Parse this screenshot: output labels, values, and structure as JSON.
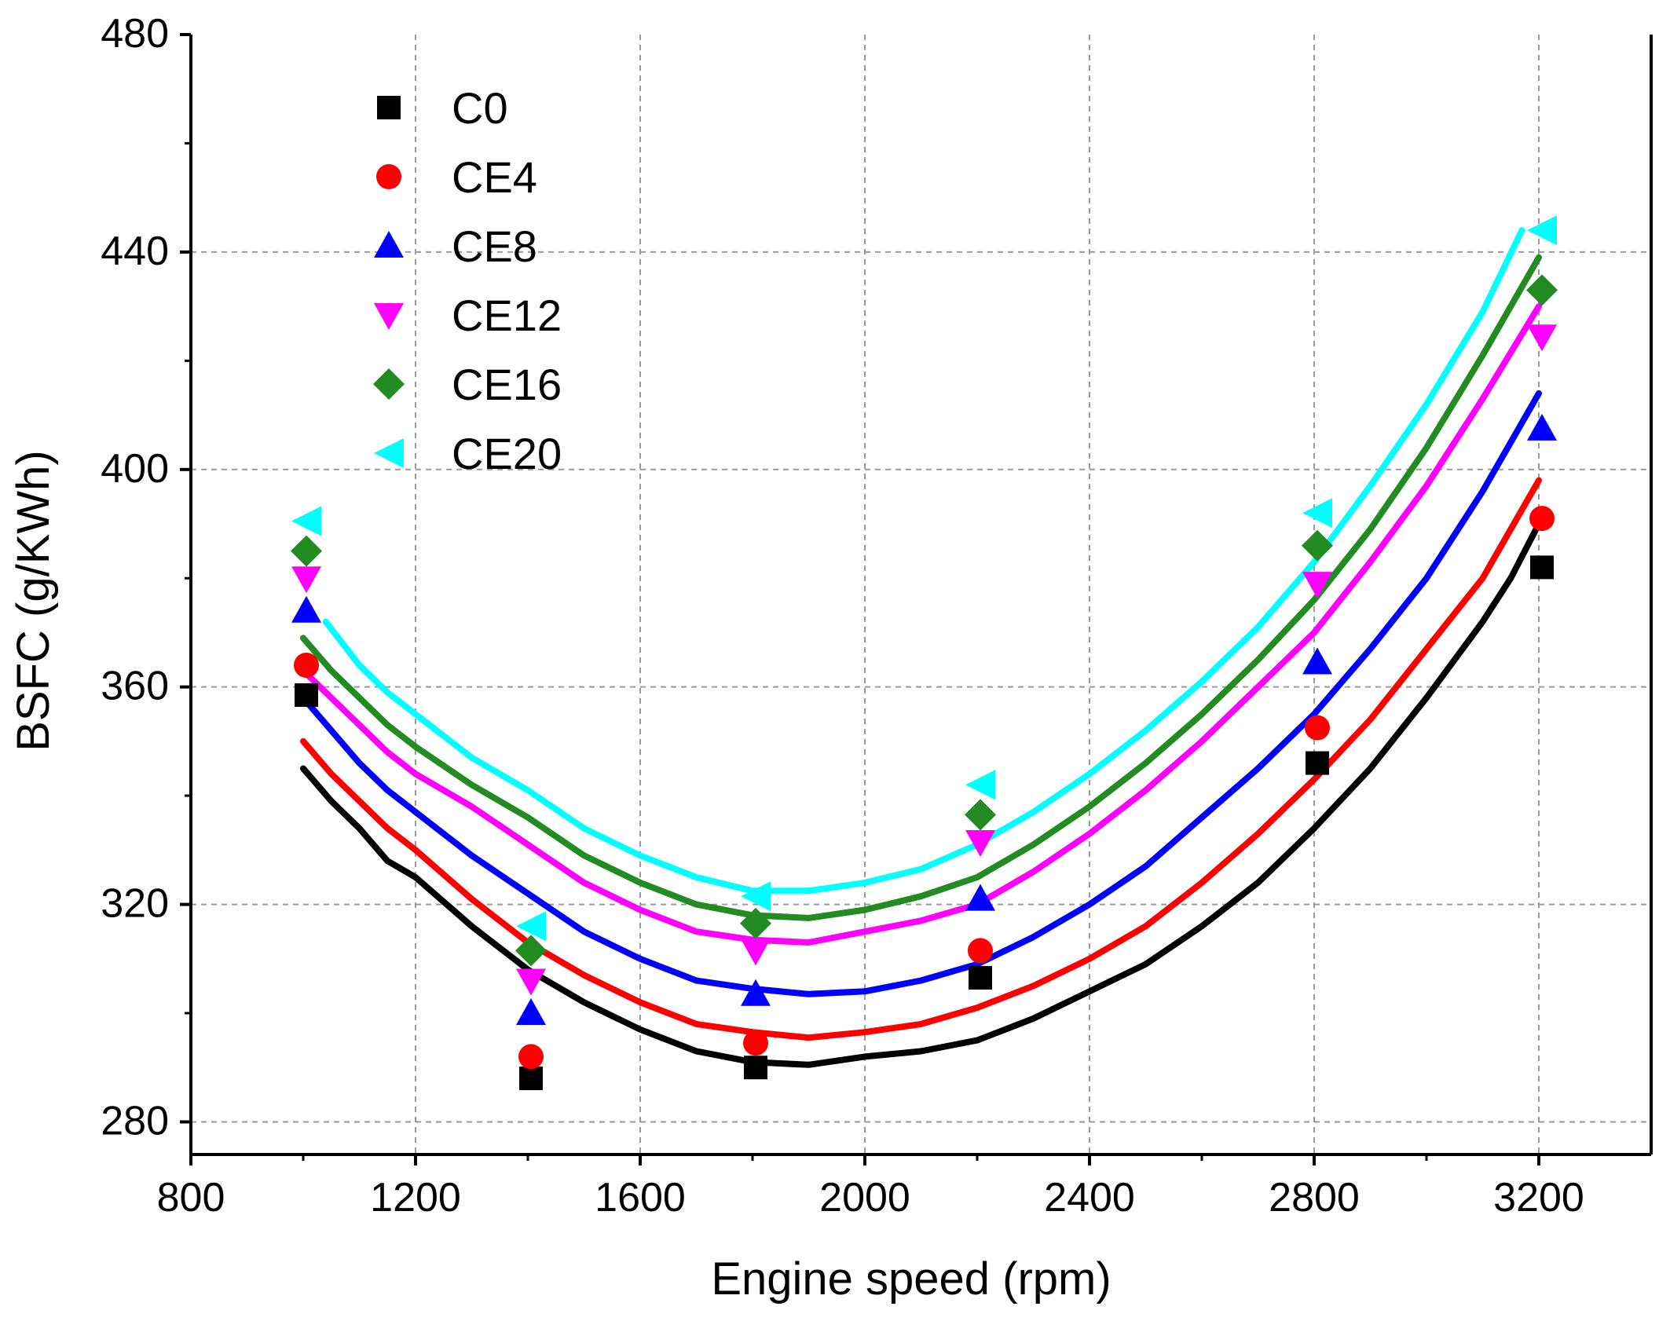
{
  "chart_data": {
    "type": "scatter",
    "xlabel": "Engine speed (rpm)",
    "ylabel": "BSFC (g/KWh)",
    "xlim": [
      800,
      3400
    ],
    "ylim": [
      274,
      480
    ],
    "xticks": [
      800,
      1200,
      1600,
      2000,
      2400,
      2800,
      3200
    ],
    "yticks": [
      280,
      320,
      360,
      400,
      440,
      480
    ],
    "grid": true,
    "legend_position": "top-left",
    "series": [
      {
        "name": "C0",
        "color": "#000000",
        "marker": "square",
        "points": [
          [
            1000,
            358.5
          ],
          [
            1400,
            288
          ],
          [
            1800,
            290
          ],
          [
            2200,
            306.5
          ],
          [
            2800,
            346
          ],
          [
            3200,
            382
          ]
        ],
        "curve": [
          [
            1000,
            345
          ],
          [
            1050,
            339
          ],
          [
            1100,
            334
          ],
          [
            1150,
            328
          ],
          [
            1200,
            325
          ],
          [
            1300,
            316
          ],
          [
            1400,
            308
          ],
          [
            1500,
            302
          ],
          [
            1600,
            297
          ],
          [
            1700,
            293
          ],
          [
            1800,
            291
          ],
          [
            1900,
            290.5
          ],
          [
            2000,
            292
          ],
          [
            2100,
            293
          ],
          [
            2200,
            295
          ],
          [
            2300,
            299
          ],
          [
            2400,
            304
          ],
          [
            2500,
            309
          ],
          [
            2600,
            316
          ],
          [
            2700,
            324
          ],
          [
            2800,
            334
          ],
          [
            2900,
            345
          ],
          [
            3000,
            358
          ],
          [
            3100,
            372
          ],
          [
            3150,
            380
          ],
          [
            3200,
            390
          ]
        ]
      },
      {
        "name": "CE4",
        "color": "#ff0000",
        "marker": "circle",
        "points": [
          [
            1000,
            364
          ],
          [
            1400,
            292
          ],
          [
            1800,
            294.5
          ],
          [
            2200,
            311.5
          ],
          [
            2800,
            352.5
          ],
          [
            3200,
            391
          ]
        ],
        "curve": [
          [
            1000,
            350
          ],
          [
            1050,
            344
          ],
          [
            1100,
            339
          ],
          [
            1150,
            334
          ],
          [
            1200,
            330
          ],
          [
            1300,
            321
          ],
          [
            1400,
            313
          ],
          [
            1500,
            307
          ],
          [
            1600,
            302
          ],
          [
            1700,
            298
          ],
          [
            1800,
            296.5
          ],
          [
            1900,
            295.5
          ],
          [
            2000,
            296.5
          ],
          [
            2100,
            298
          ],
          [
            2200,
            301
          ],
          [
            2300,
            305
          ],
          [
            2400,
            310
          ],
          [
            2500,
            316
          ],
          [
            2600,
            324
          ],
          [
            2700,
            333
          ],
          [
            2800,
            343
          ],
          [
            2900,
            354
          ],
          [
            3000,
            367
          ],
          [
            3100,
            380
          ],
          [
            3200,
            398
          ]
        ]
      },
      {
        "name": "CE8",
        "color": "#0000ff",
        "marker": "triangle-up",
        "points": [
          [
            1000,
            374
          ],
          [
            1400,
            300
          ],
          [
            1800,
            303.5
          ],
          [
            2200,
            321
          ],
          [
            2800,
            364.5
          ],
          [
            3200,
            407.5
          ]
        ],
        "curve": [
          [
            1000,
            358
          ],
          [
            1050,
            352
          ],
          [
            1100,
            346
          ],
          [
            1150,
            341
          ],
          [
            1200,
            337
          ],
          [
            1300,
            329
          ],
          [
            1400,
            322
          ],
          [
            1500,
            315
          ],
          [
            1600,
            310
          ],
          [
            1700,
            306
          ],
          [
            1800,
            304.5
          ],
          [
            1900,
            303.5
          ],
          [
            2000,
            304
          ],
          [
            2100,
            306
          ],
          [
            2200,
            309
          ],
          [
            2300,
            314
          ],
          [
            2400,
            320
          ],
          [
            2500,
            327
          ],
          [
            2600,
            336
          ],
          [
            2700,
            345
          ],
          [
            2800,
            355
          ],
          [
            2900,
            367
          ],
          [
            3000,
            380
          ],
          [
            3100,
            396
          ],
          [
            3200,
            414
          ]
        ]
      },
      {
        "name": "CE12",
        "color": "#ff00ff",
        "marker": "triangle-down",
        "points": [
          [
            1000,
            380
          ],
          [
            1400,
            306
          ],
          [
            1800,
            311.5
          ],
          [
            2200,
            331.5
          ],
          [
            2800,
            379
          ],
          [
            3200,
            424.5
          ]
        ],
        "curve": [
          [
            1000,
            363
          ],
          [
            1050,
            358
          ],
          [
            1100,
            353
          ],
          [
            1150,
            348
          ],
          [
            1200,
            344
          ],
          [
            1300,
            338
          ],
          [
            1400,
            331
          ],
          [
            1500,
            324
          ],
          [
            1600,
            319
          ],
          [
            1700,
            315
          ],
          [
            1800,
            313.5
          ],
          [
            1900,
            313
          ],
          [
            2000,
            315
          ],
          [
            2100,
            317
          ],
          [
            2200,
            320
          ],
          [
            2300,
            326
          ],
          [
            2400,
            333
          ],
          [
            2500,
            341
          ],
          [
            2600,
            350
          ],
          [
            2700,
            360
          ],
          [
            2800,
            370
          ],
          [
            2900,
            383
          ],
          [
            3000,
            397
          ],
          [
            3100,
            413
          ],
          [
            3200,
            430
          ]
        ]
      },
      {
        "name": "CE16",
        "color": "#228b22",
        "marker": "diamond",
        "points": [
          [
            1000,
            385
          ],
          [
            1400,
            311.5
          ],
          [
            1800,
            316.5
          ],
          [
            2200,
            336.5
          ],
          [
            2800,
            386
          ],
          [
            3200,
            433
          ]
        ],
        "curve": [
          [
            1000,
            369
          ],
          [
            1050,
            363
          ],
          [
            1100,
            358
          ],
          [
            1150,
            353
          ],
          [
            1200,
            349
          ],
          [
            1300,
            342
          ],
          [
            1400,
            336
          ],
          [
            1500,
            329
          ],
          [
            1600,
            324
          ],
          [
            1700,
            320
          ],
          [
            1800,
            318
          ],
          [
            1900,
            317.5
          ],
          [
            2000,
            319
          ],
          [
            2100,
            321.5
          ],
          [
            2200,
            325
          ],
          [
            2300,
            331
          ],
          [
            2400,
            338
          ],
          [
            2500,
            346
          ],
          [
            2600,
            355
          ],
          [
            2700,
            365
          ],
          [
            2800,
            376
          ],
          [
            2900,
            389
          ],
          [
            3000,
            404
          ],
          [
            3100,
            421
          ],
          [
            3200,
            439
          ]
        ]
      },
      {
        "name": "CE20",
        "color": "#00ffff",
        "marker": "triangle-left",
        "points": [
          [
            1000,
            390.5
          ],
          [
            1400,
            316
          ],
          [
            1800,
            321.5
          ],
          [
            2200,
            342
          ],
          [
            2800,
            392
          ],
          [
            3200,
            444
          ]
        ],
        "curve": [
          [
            1040,
            372
          ],
          [
            1100,
            364
          ],
          [
            1150,
            359
          ],
          [
            1200,
            355
          ],
          [
            1300,
            347
          ],
          [
            1400,
            341
          ],
          [
            1500,
            334
          ],
          [
            1600,
            329
          ],
          [
            1700,
            325
          ],
          [
            1800,
            322.5
          ],
          [
            1900,
            322.5
          ],
          [
            2000,
            324
          ],
          [
            2100,
            326.5
          ],
          [
            2200,
            331
          ],
          [
            2300,
            337
          ],
          [
            2400,
            344
          ],
          [
            2500,
            352
          ],
          [
            2600,
            361
          ],
          [
            2700,
            371
          ],
          [
            2800,
            383
          ],
          [
            2900,
            397
          ],
          [
            3000,
            412
          ],
          [
            3100,
            429
          ],
          [
            3170,
            444
          ]
        ]
      }
    ]
  }
}
